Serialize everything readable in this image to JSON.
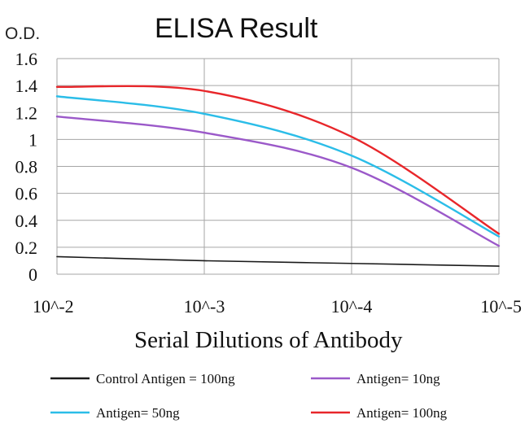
{
  "chart_data": {
    "type": "line",
    "title": "ELISA Result",
    "ylabel": "O.D.",
    "xlabel": "Serial Dilutions of Antibody",
    "x": [
      "10^-2",
      "10^-3",
      "10^-4",
      "10^-5"
    ],
    "ylim": [
      0,
      1.6
    ],
    "yticks": [
      "0",
      "0.2",
      "0.4",
      "0.6",
      "0.8",
      "1",
      "1.2",
      "1.4",
      "1.6"
    ],
    "grid": true,
    "legend_position": "bottom",
    "series": [
      {
        "name": "Control Antigen = 100ng",
        "color": "#1a1a1a",
        "values": [
          0.13,
          0.1,
          0.08,
          0.06
        ]
      },
      {
        "name": "Antigen= 10ng",
        "color": "#9b59c9",
        "values": [
          1.17,
          1.05,
          0.79,
          0.21
        ]
      },
      {
        "name": "Antigen= 50ng",
        "color": "#2bbde8",
        "values": [
          1.32,
          1.19,
          0.88,
          0.28
        ]
      },
      {
        "name": "Antigen= 100ng",
        "color": "#e8262a",
        "values": [
          1.39,
          1.36,
          1.02,
          0.3
        ]
      }
    ]
  }
}
